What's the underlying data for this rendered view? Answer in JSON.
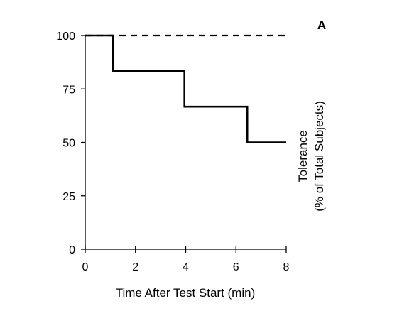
{
  "chart_data": {
    "type": "line",
    "panel_label": "A",
    "xlabel": "Time After Test Start (min)",
    "ylabel_lines": [
      "Tolerance",
      "(% of Total Subjects)"
    ],
    "xlim": [
      0,
      8
    ],
    "ylim": [
      0,
      100
    ],
    "xticks": [
      0,
      2,
      4,
      6,
      8
    ],
    "yticks": [
      0,
      25,
      50,
      75,
      100
    ],
    "grid": false,
    "series": [
      {
        "style": "solid-step",
        "color": "#000000",
        "x": [
          0,
          1.1,
          1.1,
          3.95,
          3.95,
          6.45,
          6.45,
          8
        ],
        "y": [
          100,
          100,
          83.3,
          83.3,
          66.7,
          66.7,
          50,
          50
        ]
      },
      {
        "style": "dashed",
        "color": "#000000",
        "x": [
          0,
          8
        ],
        "y": [
          100,
          100
        ]
      }
    ]
  }
}
